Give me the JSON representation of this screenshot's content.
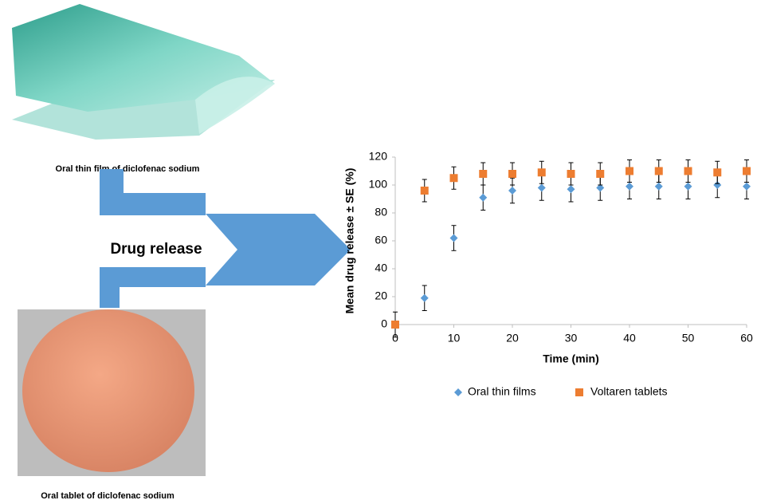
{
  "figure": {
    "film_caption": "Oral thin film of diclofenac sodium",
    "arrow_label": "Drug release",
    "tablet_caption": "Oral tablet of diclofenac sodium"
  },
  "chart_data": {
    "type": "scatter",
    "x_label": "Time (min)",
    "y_label": "Mean drug release ± SE (%)",
    "x": [
      0,
      5,
      10,
      15,
      20,
      25,
      30,
      35,
      40,
      45,
      50,
      55,
      60
    ],
    "series": [
      {
        "name": "Oral thin films",
        "color": "#5b9bd5",
        "marker": "diamond",
        "values": [
          0,
          19,
          62,
          91,
          96,
          98,
          97,
          98,
          99,
          99,
          99,
          100,
          99
        ],
        "errors": [
          9,
          9,
          9,
          9,
          9,
          9,
          9,
          9,
          9,
          9,
          9,
          9,
          9
        ]
      },
      {
        "name": "Voltaren tablets",
        "color": "#ed7d31",
        "marker": "square",
        "values": [
          0,
          96,
          105,
          108,
          108,
          109,
          108,
          108,
          110,
          110,
          110,
          109,
          110
        ],
        "errors": [
          0,
          8,
          8,
          8,
          8,
          8,
          8,
          8,
          8,
          8,
          8,
          8,
          8
        ]
      }
    ],
    "xlim": [
      0,
      60
    ],
    "xticks": [
      0,
      10,
      20,
      30,
      40,
      50,
      60
    ],
    "ylim": [
      0,
      120
    ],
    "yticks": [
      0,
      20,
      40,
      60,
      80,
      100,
      120
    ],
    "grid": false,
    "legend": "bottom"
  }
}
